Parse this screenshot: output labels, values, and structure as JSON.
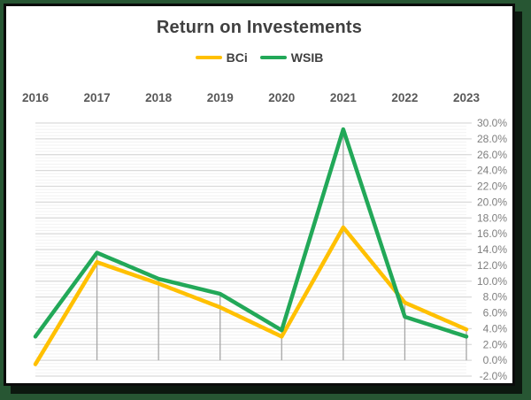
{
  "window": {
    "frame_color": "#275633",
    "card_background": "#ffffff",
    "card_border_color": "#0b0b0b",
    "shadow_color": "#0c180f"
  },
  "chart_data": {
    "type": "line",
    "title": "Return on Investements",
    "categories": [
      "2016",
      "2017",
      "2018",
      "2019",
      "2020",
      "2021",
      "2022",
      "2023"
    ],
    "series": [
      {
        "name": "BCi",
        "color": "#FFC000",
        "values": [
          -0.5,
          12.4,
          9.7,
          6.7,
          3.0,
          16.8,
          7.3,
          3.9
        ]
      },
      {
        "name": "WSIB",
        "color": "#22A858",
        "values": [
          3.0,
          13.6,
          10.3,
          8.4,
          3.8,
          29.2,
          5.5,
          3.0
        ]
      }
    ],
    "x_axis": {
      "side": "top",
      "label_color": "#595959"
    },
    "y_axis": {
      "side": "right",
      "min": -2,
      "max": 30,
      "major_step": 2,
      "minor_step": 0.4,
      "label_suffix": "%",
      "label_decimals": 1,
      "label_color": "#7f7f7f",
      "tick_labels": [
        "30.0%",
        "28.0%",
        "26.0%",
        "24.0%",
        "22.0%",
        "20.0%",
        "18.0%",
        "16.0%",
        "14.0%",
        "12.0%",
        "10.0%",
        "8.0%",
        "6.0%",
        "4.0%",
        "2.0%",
        "0.0%",
        "-2.0%"
      ]
    },
    "gridlines": {
      "major_color": "#d9d9d9",
      "minor_color": "#f2f2f2",
      "drop_line_color": "#a6a6a6",
      "drop_lines_to_zero": true
    },
    "legend_position": "top",
    "title_color": "#404040"
  }
}
